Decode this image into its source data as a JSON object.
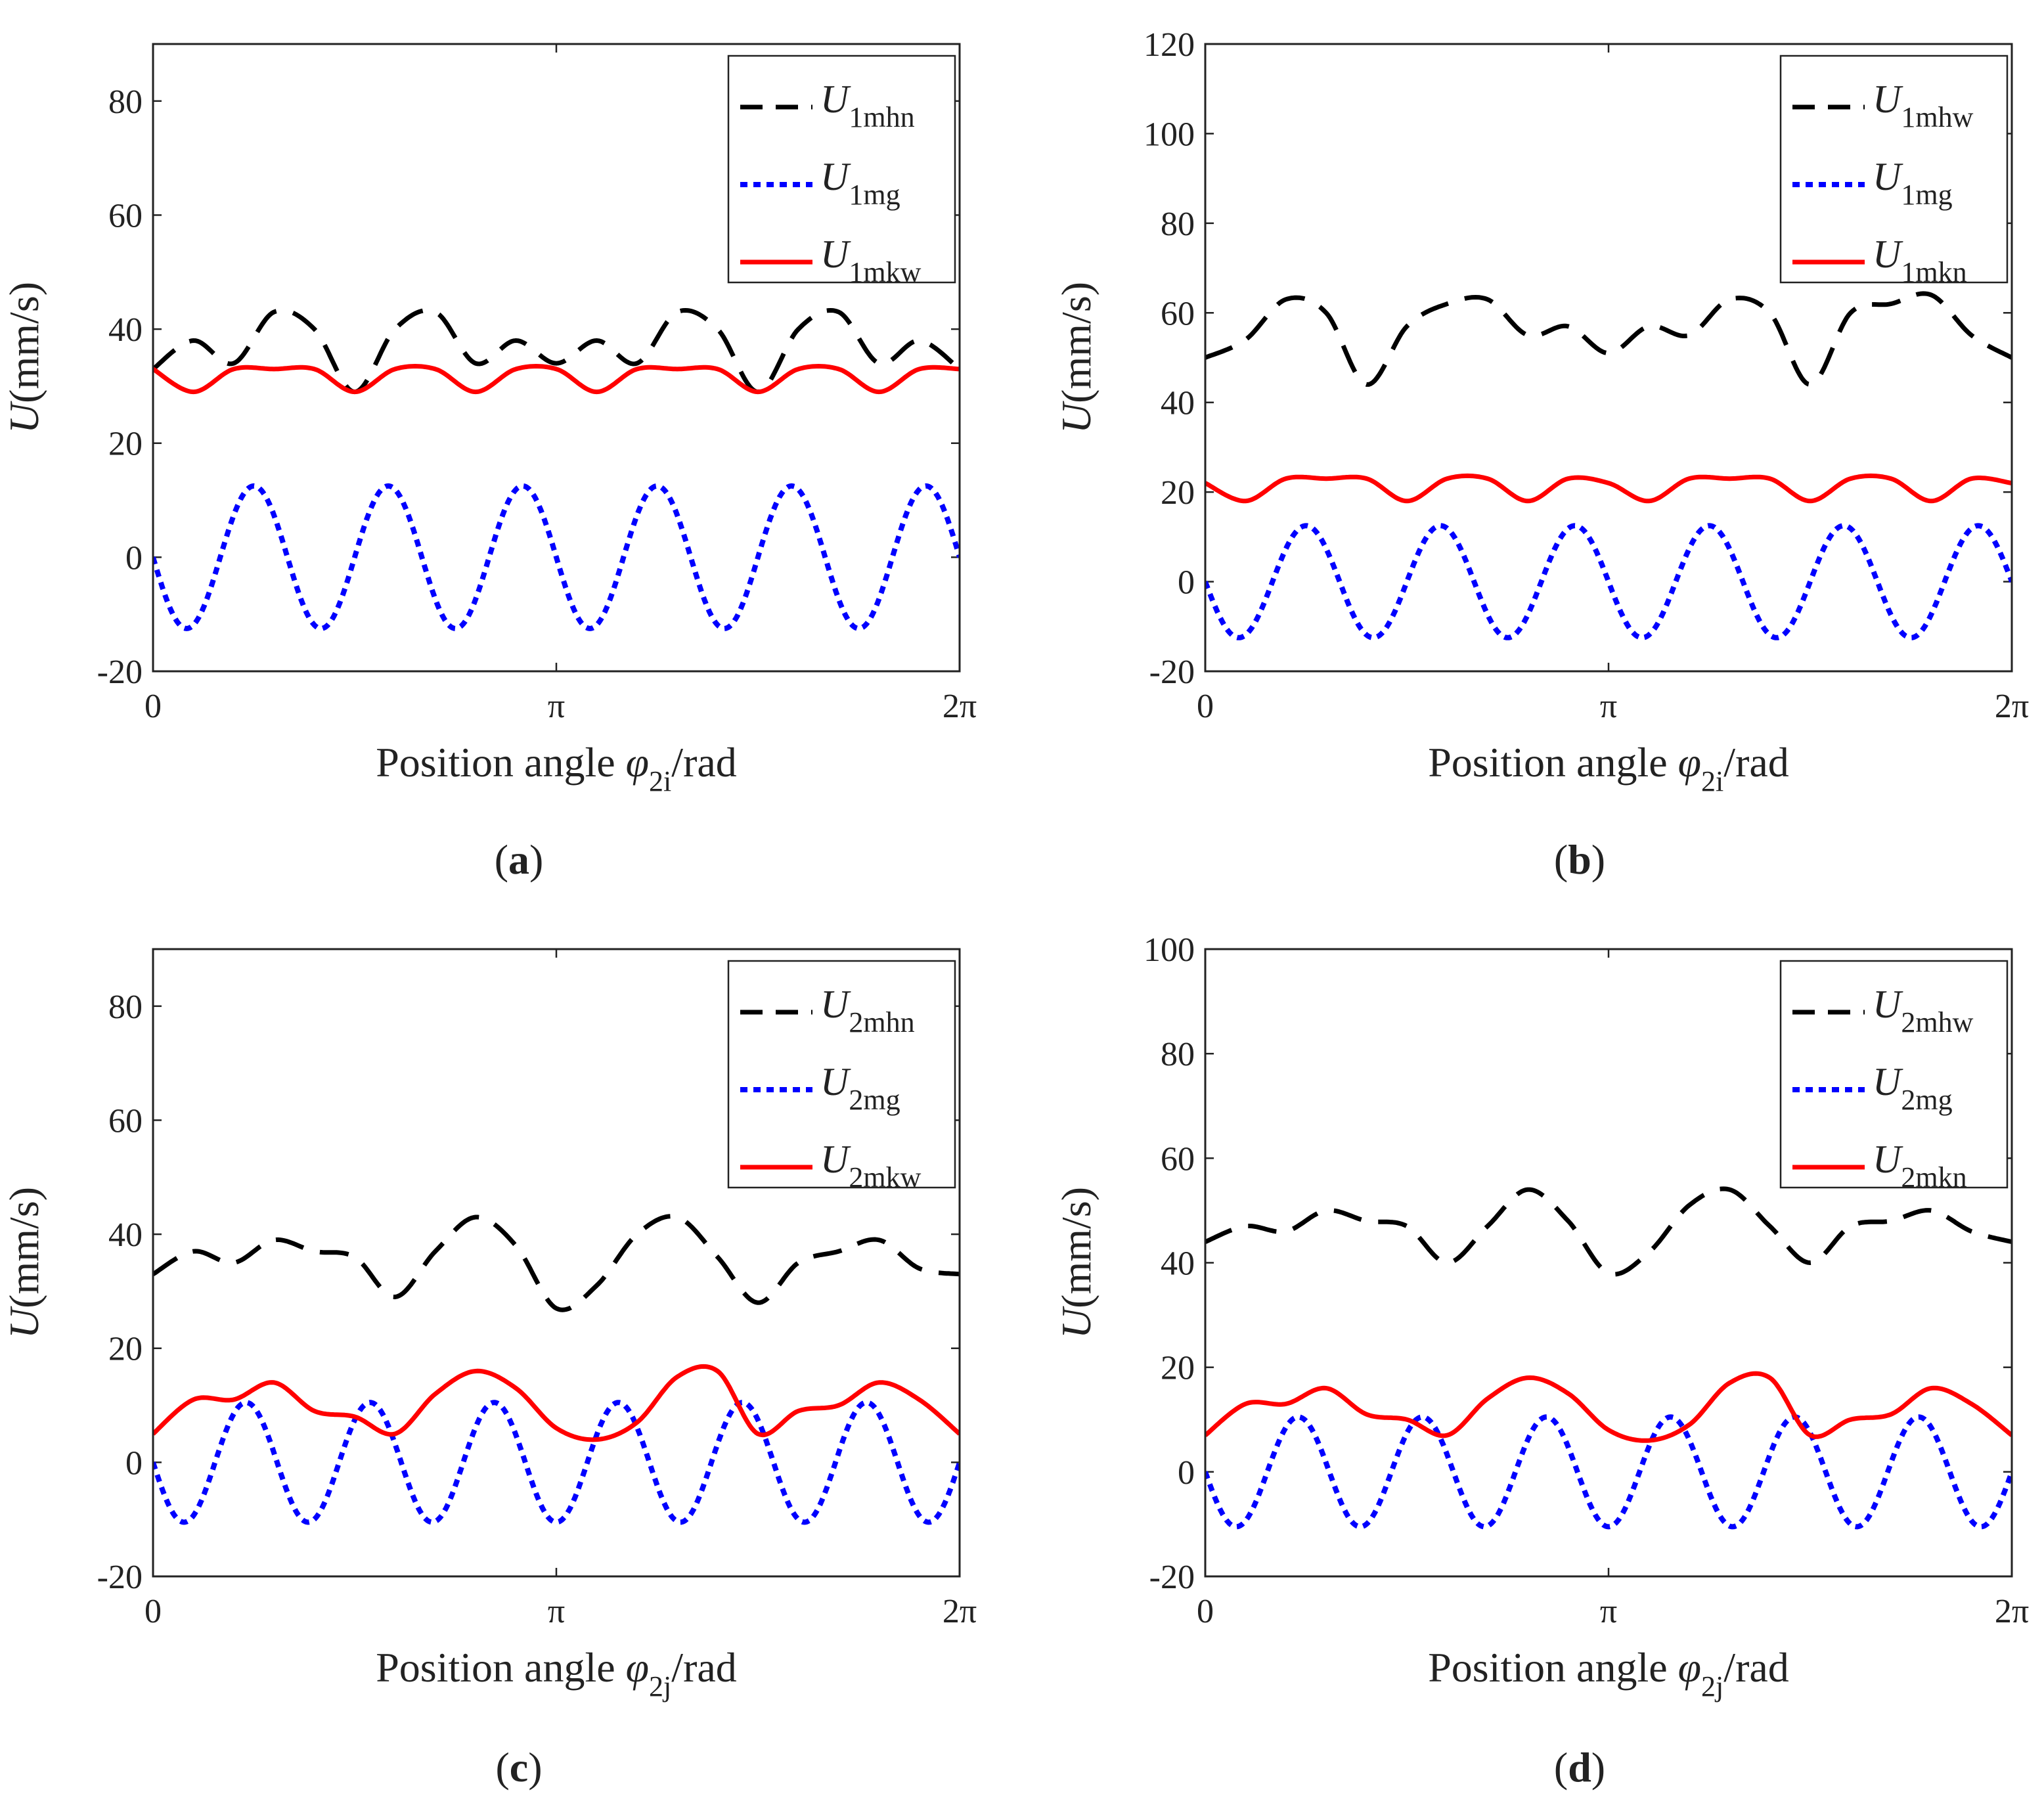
{
  "colors": {
    "black": "#000000",
    "blue": "#0000ff",
    "red": "#ff0000"
  },
  "chart_data": [
    {
      "type": "line",
      "caption": "a",
      "xlabel_text": "Position angle ",
      "xlabel_sym": "φ",
      "xlabel_sub": "2i",
      "xlabel_unit": "/rad",
      "ylabel_sym": "U",
      "ylabel_unit": "(mm/s)",
      "xlim": [
        0,
        6.2832
      ],
      "ylim": [
        -20,
        90
      ],
      "xticks": [
        "0",
        "π",
        "2π"
      ],
      "yticks": [
        -20,
        0,
        20,
        40,
        60,
        80
      ],
      "legend_position": "top-right",
      "series": [
        {
          "name": "U",
          "sub": "1mhn",
          "style": "dashed",
          "color": "#000000",
          "x": [
            0,
            0.314,
            0.628,
            0.942,
            1.257,
            1.571,
            1.885,
            2.199,
            2.513,
            2.827,
            3.142,
            3.456,
            3.77,
            4.084,
            4.398,
            4.712,
            5.027,
            5.341,
            5.655,
            5.969,
            6.283
          ],
          "y": [
            33,
            38,
            34,
            43,
            40,
            29,
            40,
            43,
            34,
            38,
            34,
            38,
            34,
            43,
            40,
            29,
            40,
            43,
            34,
            38,
            33
          ]
        },
        {
          "name": "U",
          "sub": "1mg",
          "style": "dotted",
          "color": "#0000ff",
          "fn": "sine",
          "amplitude": -12.5,
          "cycles": 6,
          "offset": 0
        },
        {
          "name": "U",
          "sub": "1mkw",
          "style": "solid",
          "color": "#ff0000",
          "x": [
            0,
            0.314,
            0.628,
            0.942,
            1.257,
            1.571,
            1.885,
            2.199,
            2.513,
            2.827,
            3.142,
            3.456,
            3.77,
            4.084,
            4.398,
            4.712,
            5.027,
            5.341,
            5.655,
            5.969,
            6.283
          ],
          "y": [
            33,
            29,
            33,
            33,
            33,
            29,
            33,
            33,
            29,
            33,
            33,
            29,
            33,
            33,
            33,
            29,
            33,
            33,
            29,
            33,
            33
          ]
        }
      ]
    },
    {
      "type": "line",
      "caption": "b",
      "xlabel_text": "Position angle ",
      "xlabel_sym": "φ",
      "xlabel_sub": "2i",
      "xlabel_unit": "/rad",
      "ylabel_sym": "U",
      "ylabel_unit": "(mm/s)",
      "xlim": [
        0,
        6.2832
      ],
      "ylim": [
        -20,
        120
      ],
      "xticks": [
        "0",
        "π",
        "2π"
      ],
      "yticks": [
        -20,
        0,
        20,
        40,
        60,
        80,
        100,
        120
      ],
      "legend_position": "top-right",
      "series": [
        {
          "name": "U",
          "sub": "1mhw",
          "style": "dashed",
          "color": "#000000",
          "x": [
            0,
            0.314,
            0.628,
            0.942,
            1.257,
            1.571,
            1.885,
            2.199,
            2.513,
            2.827,
            3.142,
            3.456,
            3.77,
            4.084,
            4.398,
            4.712,
            5.027,
            5.341,
            5.655,
            5.969,
            6.283
          ],
          "y": [
            50,
            54,
            63,
            60,
            44,
            57,
            62,
            63,
            55,
            57,
            51,
            57,
            55,
            63,
            60,
            44,
            60,
            62,
            64,
            55,
            50
          ]
        },
        {
          "name": "U",
          "sub": "1mg",
          "style": "dotted",
          "color": "#0000ff",
          "fn": "sine",
          "amplitude": -12.5,
          "cycles": 6,
          "offset": 0
        },
        {
          "name": "U",
          "sub": "1mkn",
          "style": "solid",
          "color": "#ff0000",
          "x": [
            0,
            0.314,
            0.628,
            0.942,
            1.257,
            1.571,
            1.885,
            2.199,
            2.513,
            2.827,
            3.142,
            3.456,
            3.77,
            4.084,
            4.398,
            4.712,
            5.027,
            5.341,
            5.655,
            5.969,
            6.283
          ],
          "y": [
            22,
            18,
            23,
            23,
            23,
            18,
            23,
            23,
            18,
            23,
            22,
            18,
            23,
            23,
            23,
            18,
            23,
            23,
            18,
            23,
            22
          ]
        }
      ]
    },
    {
      "type": "line",
      "caption": "c",
      "xlabel_text": "Position angle ",
      "xlabel_sym": "φ",
      "xlabel_sub": "2j",
      "xlabel_unit": "/rad",
      "ylabel_sym": "U",
      "ylabel_unit": "(mm/s)",
      "xlim": [
        0,
        6.2832
      ],
      "ylim": [
        -20,
        90
      ],
      "xticks": [
        "0",
        "π",
        "2π"
      ],
      "yticks": [
        -20,
        0,
        20,
        40,
        60,
        80
      ],
      "legend_position": "top-right",
      "series": [
        {
          "name": "U",
          "sub": "2mhn",
          "style": "dashed",
          "color": "#000000",
          "x": [
            0,
            0.314,
            0.628,
            0.942,
            1.257,
            1.571,
            1.885,
            2.199,
            2.513,
            2.827,
            3.142,
            3.456,
            3.77,
            4.084,
            4.398,
            4.712,
            5.027,
            5.341,
            5.655,
            5.969,
            6.283
          ],
          "y": [
            33,
            37,
            35,
            39,
            37,
            36,
            29,
            37,
            43,
            38,
            27,
            31,
            40,
            43,
            36,
            28,
            35,
            37,
            39,
            34,
            33
          ]
        },
        {
          "name": "U",
          "sub": "2mg",
          "style": "dotted",
          "color": "#0000ff",
          "fn": "sine",
          "amplitude": -10.5,
          "cycles": 6.5,
          "offset": 0
        },
        {
          "name": "U",
          "sub": "2mkw",
          "style": "solid",
          "color": "#ff0000",
          "x": [
            0,
            0.314,
            0.628,
            0.942,
            1.257,
            1.571,
            1.885,
            2.199,
            2.513,
            2.827,
            3.142,
            3.456,
            3.77,
            4.084,
            4.398,
            4.712,
            5.027,
            5.341,
            5.655,
            5.969,
            6.283
          ],
          "y": [
            5,
            11,
            11,
            14,
            9,
            8,
            5,
            12,
            16,
            13,
            6,
            4,
            7,
            15,
            16,
            5,
            9,
            10,
            14,
            11,
            5
          ]
        }
      ]
    },
    {
      "type": "line",
      "caption": "d",
      "xlabel_text": "Position angle ",
      "xlabel_sym": "φ",
      "xlabel_sub": "2j",
      "xlabel_unit": "/rad",
      "ylabel_sym": "U",
      "ylabel_unit": "(mm/s)",
      "xlim": [
        0,
        6.2832
      ],
      "ylim": [
        -20,
        100
      ],
      "xticks": [
        "0",
        "π",
        "2π"
      ],
      "yticks": [
        -20,
        0,
        20,
        40,
        60,
        80,
        100
      ],
      "legend_position": "top-right",
      "series": [
        {
          "name": "U",
          "sub": "2mhw",
          "style": "dashed",
          "color": "#000000",
          "x": [
            0,
            0.314,
            0.628,
            0.942,
            1.257,
            1.571,
            1.885,
            2.199,
            2.513,
            2.827,
            3.142,
            3.456,
            3.77,
            4.084,
            4.398,
            4.712,
            5.027,
            5.341,
            5.655,
            5.969,
            6.283
          ],
          "y": [
            44,
            47,
            46,
            50,
            48,
            47,
            40,
            47,
            54,
            48,
            38,
            42,
            51,
            54,
            47,
            40,
            47,
            48,
            50,
            46,
            44
          ]
        },
        {
          "name": "U",
          "sub": "2mg",
          "style": "dotted",
          "color": "#0000ff",
          "fn": "sine",
          "amplitude": -10.5,
          "cycles": 6.5,
          "offset": 0
        },
        {
          "name": "U",
          "sub": "2mkn",
          "style": "solid",
          "color": "#ff0000",
          "x": [
            0,
            0.314,
            0.628,
            0.942,
            1.257,
            1.571,
            1.885,
            2.199,
            2.513,
            2.827,
            3.142,
            3.456,
            3.77,
            4.084,
            4.398,
            4.712,
            5.027,
            5.341,
            5.655,
            5.969,
            6.283
          ],
          "y": [
            7,
            13,
            13,
            16,
            11,
            10,
            7,
            14,
            18,
            15,
            8,
            6,
            9,
            17,
            18,
            7,
            10,
            11,
            16,
            13,
            7
          ]
        }
      ]
    }
  ]
}
